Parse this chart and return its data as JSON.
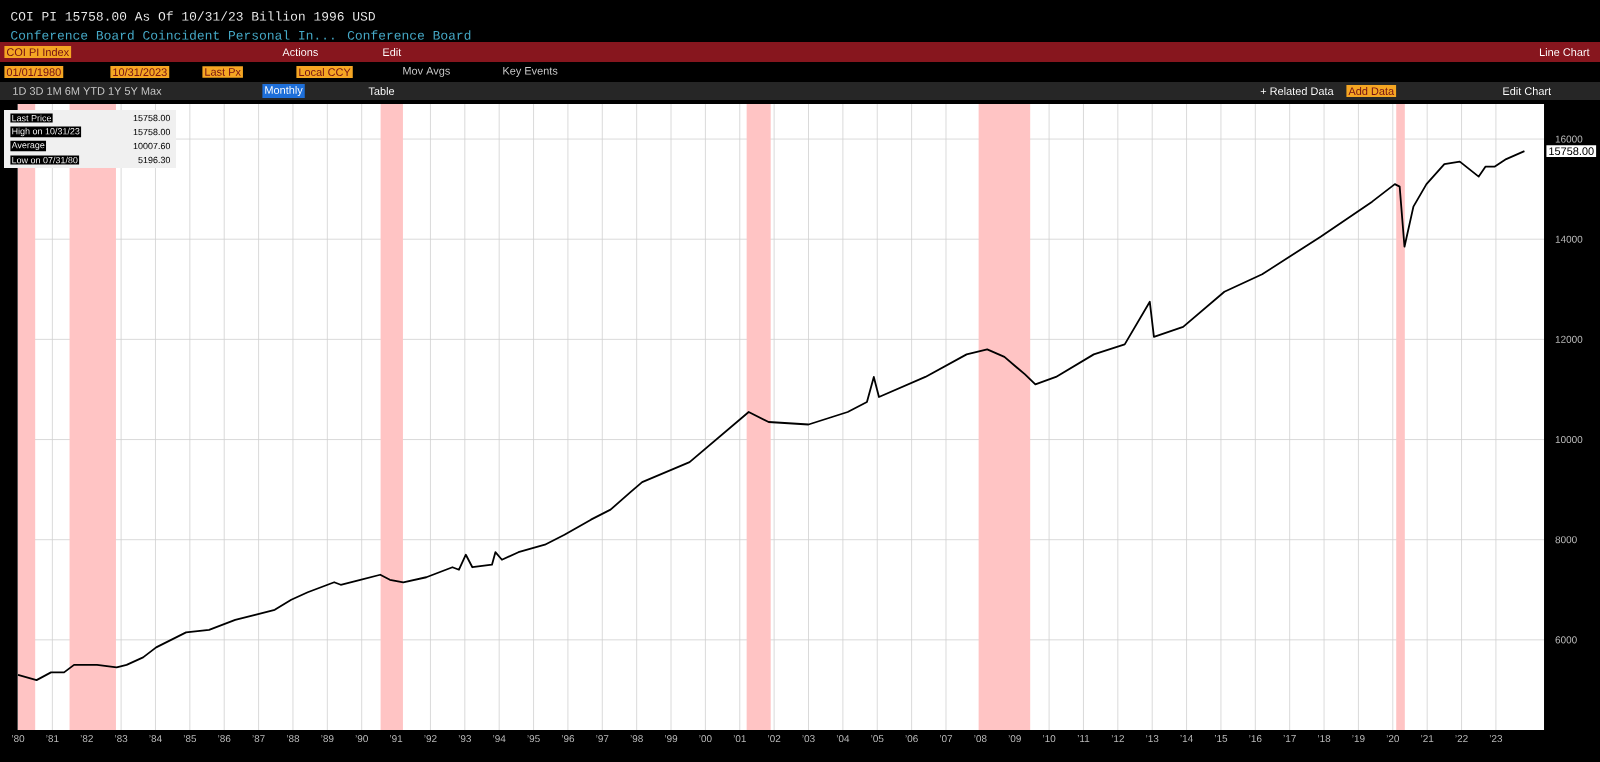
{
  "chart_data": {
    "type": "line",
    "title": "COI PI    15758.00    As Of 10/31/23   Billion 1996 USD",
    "subtitle": "Conference Board Coincident Personal In...    Conference Board",
    "annotations": [
      "COI PI Index",
      "Actions",
      "Edit",
      "Line Chart",
      "01/01/1980",
      "10/31/2023",
      "Last Px",
      "Local CCY",
      "Mov Avgs",
      "Key Events",
      "1D   3D   1M   6M   YTD   1Y   5Y   Max",
      "Monthly",
      "Table",
      "+ Related Data",
      "Add Data",
      "Edit Chart",
      "15758.00",
      "Last Price",
      "15758.00",
      "High on 10/31/23",
      "15758.00",
      "Average",
      "10007.60",
      "Low on 07/31/80",
      "5196.30"
    ],
    "xlim": [
      1980,
      2024.4
    ],
    "ylim": [
      4200,
      16700
    ],
    "xticks": [
      {
        "value": 1980,
        "label": "’80"
      },
      {
        "value": 1981,
        "label": "’81"
      },
      {
        "value": 1982,
        "label": "’82"
      },
      {
        "value": 1983,
        "label": "’83"
      },
      {
        "value": 1984,
        "label": "’84"
      },
      {
        "value": 1985,
        "label": "’85"
      },
      {
        "value": 1986,
        "label": "’86"
      },
      {
        "value": 1987,
        "label": "’87"
      },
      {
        "value": 1988,
        "label": "’88"
      },
      {
        "value": 1989,
        "label": "’89"
      },
      {
        "value": 1990,
        "label": "’90"
      },
      {
        "value": 1991,
        "label": "’91"
      },
      {
        "value": 1992,
        "label": "’92"
      },
      {
        "value": 1993,
        "label": "’93"
      },
      {
        "value": 1994,
        "label": "’94"
      },
      {
        "value": 1995,
        "label": "’95"
      },
      {
        "value": 1996,
        "label": "’96"
      },
      {
        "value": 1997,
        "label": "’97"
      },
      {
        "value": 1998,
        "label": "’98"
      },
      {
        "value": 1999,
        "label": "’99"
      },
      {
        "value": 2000,
        "label": "’00"
      },
      {
        "value": 2001,
        "label": "’01"
      },
      {
        "value": 2002,
        "label": "’02"
      },
      {
        "value": 2003,
        "label": "’03"
      },
      {
        "value": 2004,
        "label": "’04"
      },
      {
        "value": 2005,
        "label": "’05"
      },
      {
        "value": 2006,
        "label": "’06"
      },
      {
        "value": 2007,
        "label": "’07"
      },
      {
        "value": 2008,
        "label": "’08"
      },
      {
        "value": 2009,
        "label": "’09"
      },
      {
        "value": 2010,
        "label": "’10"
      },
      {
        "value": 2011,
        "label": "’11"
      },
      {
        "value": 2012,
        "label": "’12"
      },
      {
        "value": 2013,
        "label": "’13"
      },
      {
        "value": 2014,
        "label": "’14"
      },
      {
        "value": 2015,
        "label": "’15"
      },
      {
        "value": 2016,
        "label": "’16"
      },
      {
        "value": 2017,
        "label": "’17"
      },
      {
        "value": 2018,
        "label": "’18"
      },
      {
        "value": 2019,
        "label": "’19"
      },
      {
        "value": 2020,
        "label": "’20"
      },
      {
        "value": 2021,
        "label": "’21"
      },
      {
        "value": 2022,
        "label": "’22"
      },
      {
        "value": 2023,
        "label": "’23"
      }
    ],
    "yticks": [
      6000,
      8000,
      10000,
      12000,
      14000,
      16000
    ],
    "grid": true,
    "bands": [
      {
        "axis": "x",
        "from": 1980.0,
        "to": 1980.5,
        "color": "#ffc4c4"
      },
      {
        "axis": "x",
        "from": 1981.5,
        "to": 1982.85,
        "color": "#ffc4c4"
      },
      {
        "axis": "x",
        "from": 1990.55,
        "to": 1991.2,
        "color": "#ffc4c4"
      },
      {
        "axis": "x",
        "from": 2001.2,
        "to": 2001.9,
        "color": "#ffc4c4"
      },
      {
        "axis": "x",
        "from": 2007.95,
        "to": 2009.45,
        "color": "#ffc4c4"
      },
      {
        "axis": "x",
        "from": 2020.1,
        "to": 2020.35,
        "color": "#ffc4c4"
      }
    ],
    "series": [
      {
        "color": "#000000",
        "x": [
          1980.0,
          1980.54,
          1980.96,
          1981.34,
          1981.63,
          1982.3,
          1982.87,
          1983.16,
          1983.64,
          1984.02,
          1984.6,
          1984.89,
          1985.56,
          1986.32,
          1986.9,
          1987.47,
          1987.95,
          1988.43,
          1989.2,
          1989.39,
          1989.96,
          1990.54,
          1990.82,
          1991.21,
          1991.88,
          1992.64,
          1992.83,
          1993.03,
          1993.22,
          1993.79,
          1993.89,
          1994.08,
          1994.56,
          1995.33,
          1995.9,
          1996.67,
          1997.24,
          1997.82,
          1998.16,
          1999.54,
          2001.26,
          2001.84,
          2003.0,
          2004.14,
          2004.7,
          2004.9,
          2005.05,
          2006.4,
          2007.6,
          2008.2,
          2008.7,
          2009.3,
          2009.6,
          2010.2,
          2011.3,
          2012.2,
          2012.93,
          2013.05,
          2013.9,
          2015.1,
          2016.2,
          2017.9,
          2019.4,
          2020.06,
          2020.2,
          2020.34,
          2020.6,
          2020.98,
          2021.5,
          2021.95,
          2022.5,
          2022.7,
          2022.97,
          2023.3,
          2023.83
        ],
        "values": [
          5300,
          5196.3,
          5350,
          5350,
          5500,
          5500,
          5450,
          5500,
          5650,
          5850,
          6050,
          6150,
          6200,
          6400,
          6500,
          6600,
          6800,
          6950,
          7150,
          7100,
          7200,
          7300,
          7200,
          7150,
          7250,
          7450,
          7400,
          7700,
          7450,
          7500,
          7750,
          7600,
          7750,
          7900,
          8100,
          8400,
          8600,
          8950,
          9150,
          9550,
          10550,
          10350,
          10300,
          10550,
          10750,
          11250,
          10850,
          11250,
          11700,
          11800,
          11650,
          11300,
          11100,
          11250,
          11700,
          11900,
          12750,
          12050,
          12250,
          12950,
          13300,
          14050,
          14750,
          15100,
          15050,
          13850,
          14650,
          15100,
          15500,
          15550,
          15250,
          15450,
          15450,
          15600,
          15758
        ]
      }
    ]
  }
}
